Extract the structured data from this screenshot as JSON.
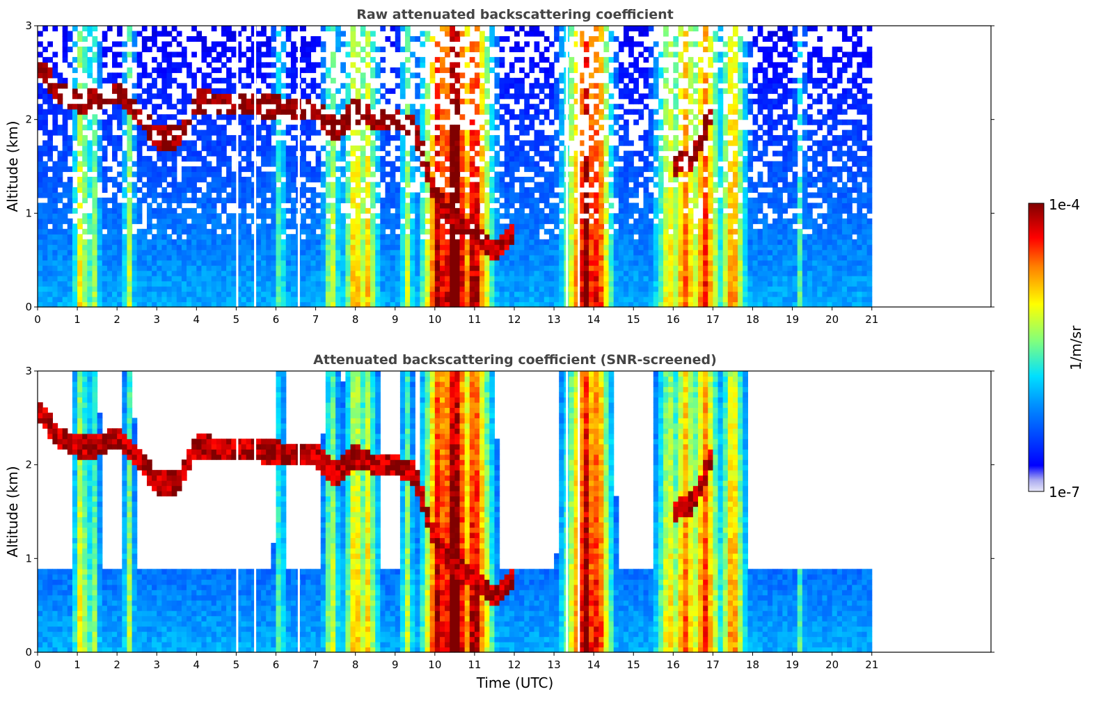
{
  "chart_data": [
    {
      "type": "heatmap",
      "title": "Raw attenuated backscattering coefficient",
      "xlabel": "",
      "ylabel": "Altitude (km)",
      "xlim": [
        0,
        24
      ],
      "ylim": [
        0,
        3
      ],
      "data_x_extent": [
        0,
        21
      ],
      "x_ticks": [
        0,
        1,
        2,
        3,
        4,
        5,
        6,
        7,
        8,
        9,
        10,
        11,
        12,
        13,
        14,
        15,
        16,
        17,
        18,
        19,
        20,
        21
      ],
      "y_ticks": [
        0,
        1,
        2,
        3
      ],
      "colormap": "jet",
      "zero_signal_gaps_utc": [
        5.0,
        5.45,
        6.55,
        13.3,
        13.6
      ],
      "cloud_layer_altitude_km": [
        {
          "t": 0.0,
          "z": 2.6
        },
        {
          "t": 0.5,
          "z": 2.3
        },
        {
          "t": 1.0,
          "z": 2.2
        },
        {
          "t": 1.5,
          "z": 2.2
        },
        {
          "t": 2.0,
          "z": 2.3
        },
        {
          "t": 2.5,
          "z": 2.1
        },
        {
          "t": 3.0,
          "z": 1.8
        },
        {
          "t": 3.5,
          "z": 1.8
        },
        {
          "t": 4.0,
          "z": 2.2
        },
        {
          "t": 7.0,
          "z": 2.1
        },
        {
          "t": 7.5,
          "z": 1.9
        },
        {
          "t": 8.0,
          "z": 2.1
        },
        {
          "t": 8.5,
          "z": 2.0
        },
        {
          "t": 9.0,
          "z": 2.0
        },
        {
          "t": 9.5,
          "z": 1.9
        },
        {
          "t": 10.0,
          "z": 1.2
        },
        {
          "t": 10.5,
          "z": 0.9
        },
        {
          "t": 11.0,
          "z": 0.8
        },
        {
          "t": 11.5,
          "z": 0.6
        },
        {
          "t": 12.0,
          "z": 0.8
        },
        {
          "t": 16.0,
          "z": 1.5
        },
        {
          "t": 16.5,
          "z": 1.6
        },
        {
          "t": 17.0,
          "z": 2.1
        }
      ]
    },
    {
      "type": "heatmap",
      "title": "Attenuated backscattering coefficient (SNR-screened)",
      "xlabel": "Time (UTC)",
      "ylabel": "Altitude (km)",
      "xlim": [
        0,
        24
      ],
      "ylim": [
        0,
        3
      ],
      "data_x_extent": [
        0,
        21
      ],
      "x_ticks": [
        0,
        1,
        2,
        3,
        4,
        5,
        6,
        7,
        8,
        9,
        10,
        11,
        12,
        13,
        14,
        15,
        16,
        17,
        18,
        19,
        20,
        21
      ],
      "y_ticks": [
        0,
        1,
        2,
        3
      ],
      "colormap": "jet"
    }
  ],
  "colorbar": {
    "label": "1/m/sr",
    "max_label": "1e-4",
    "min_label": "1e-7",
    "stops": [
      "#0b0b8a",
      "#0000ff",
      "#0080ff",
      "#00e0ff",
      "#7fff7f",
      "#ffff00",
      "#ff8000",
      "#ff0000",
      "#800000"
    ]
  }
}
